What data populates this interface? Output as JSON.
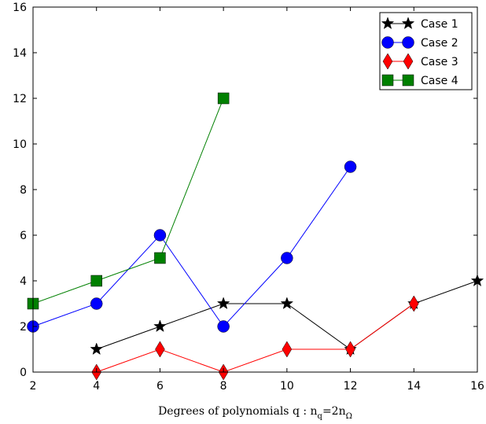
{
  "chart_data": {
    "type": "line",
    "title": "",
    "xlabel": "Degrees of polynomials q : n",
    "xlabel_math": {
      "var_sub": "q",
      "equals": "=2n",
      "sub2": "Ω"
    },
    "ylabel": "",
    "xlim": [
      2,
      16
    ],
    "ylim": [
      0,
      16
    ],
    "xticks": [
      "2",
      "4",
      "6",
      "8",
      "10",
      "12",
      "14",
      "16"
    ],
    "yticks": [
      "0",
      "2",
      "4",
      "6",
      "8",
      "10",
      "12",
      "14",
      "16"
    ],
    "grid": false,
    "legend_position": "top-right",
    "series": [
      {
        "name": "Case 1",
        "color": "#000000",
        "marker": "star",
        "points": [
          [
            4,
            1
          ],
          [
            6,
            2
          ],
          [
            8,
            3
          ],
          [
            10,
            3
          ],
          [
            12,
            1
          ],
          [
            14,
            3
          ],
          [
            16,
            4
          ]
        ]
      },
      {
        "name": "Case 2",
        "color": "#0000ff",
        "marker": "circle",
        "points": [
          [
            2,
            2
          ],
          [
            4,
            3
          ],
          [
            6,
            6
          ],
          [
            8,
            2
          ],
          [
            10,
            5
          ],
          [
            12,
            9
          ]
        ]
      },
      {
        "name": "Case 3",
        "color": "#ff0000",
        "marker": "diamond",
        "points": [
          [
            4,
            0
          ],
          [
            6,
            1
          ],
          [
            8,
            0
          ],
          [
            10,
            1
          ],
          [
            12,
            1
          ],
          [
            14,
            3
          ]
        ]
      },
      {
        "name": "Case 4",
        "color": "#008000",
        "marker": "square",
        "points": [
          [
            2,
            3
          ],
          [
            4,
            4
          ],
          [
            6,
            5
          ],
          [
            8,
            12
          ]
        ]
      }
    ]
  }
}
